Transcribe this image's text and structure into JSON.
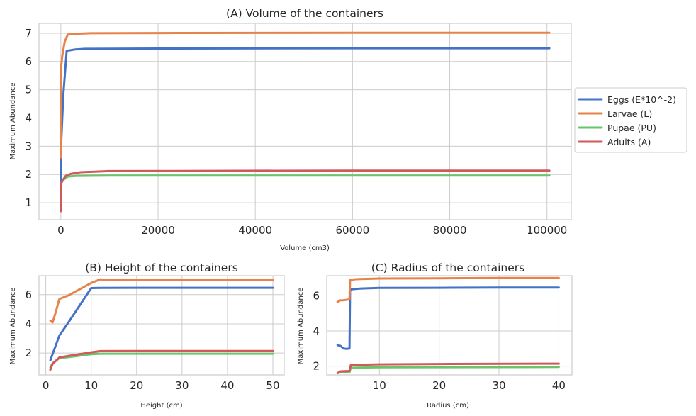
{
  "colors": {
    "eggs": "#4472c4",
    "larvae": "#e6834a",
    "pupae": "#6ac56a",
    "adults": "#d05a5a"
  },
  "legend": {
    "placement": "right",
    "entries": [
      "Eggs (E*10^-2)",
      "Larvae (L)",
      "Pupae (PU)",
      "Adults (A)"
    ]
  },
  "chart_data": [
    {
      "type": "line",
      "title": "(A) Volume of the containers",
      "xlabel": "Volume (cm3)",
      "ylabel": "Maximum Abundance",
      "xlim": [
        -4500,
        105000
      ],
      "ylim": [
        0.4,
        7.35
      ],
      "xticks": [
        0,
        20000,
        40000,
        60000,
        80000,
        100000
      ],
      "yticks": [
        1,
        2,
        3,
        4,
        5,
        6,
        7
      ],
      "grid": true,
      "series": [
        {
          "name": "Eggs (E*10^-2)",
          "color_key": "eggs",
          "x": [
            0,
            10,
            100,
            500,
            1200,
            2000,
            3000,
            5000,
            20000,
            60000,
            100500
          ],
          "y": [
            1.6,
            2.5,
            3.2,
            4.8,
            6.38,
            6.4,
            6.43,
            6.45,
            6.46,
            6.47,
            6.47
          ]
        },
        {
          "name": "Larvae (L)",
          "color_key": "larvae",
          "x": [
            0,
            5,
            50,
            300,
            800,
            1400,
            3000,
            6000,
            20000,
            61000,
            100500
          ],
          "y": [
            2.6,
            5.7,
            5.8,
            6.2,
            6.7,
            6.95,
            6.98,
            7.0,
            7.01,
            7.02,
            7.02
          ]
        },
        {
          "name": "Pupae (PU)",
          "color_key": "pupae",
          "x": [
            0,
            200,
            800,
            1500,
            3000,
            10000,
            100500
          ],
          "y": [
            1.65,
            1.75,
            1.85,
            1.93,
            1.95,
            1.96,
            1.96
          ]
        },
        {
          "name": "Adults (A)",
          "color_key": "adults",
          "x": [
            0,
            20,
            100,
            400,
            1000,
            2000,
            4000,
            10000,
            60000,
            100500
          ],
          "y": [
            0.7,
            1.6,
            1.7,
            1.8,
            1.95,
            2.02,
            2.08,
            2.12,
            2.14,
            2.14
          ]
        }
      ]
    },
    {
      "type": "line",
      "title": "(B) Height of the containers",
      "xlabel": "Height (cm)",
      "ylabel": "Maximum Abundance",
      "xlim": [
        -1.5,
        52.5
      ],
      "ylim": [
        0.5,
        7.3
      ],
      "xticks": [
        0,
        10,
        20,
        30,
        40,
        50
      ],
      "yticks": [
        2,
        4,
        6
      ],
      "grid": true,
      "series": [
        {
          "name": "Eggs (E*10^-2)",
          "color_key": "eggs",
          "x": [
            1,
            3,
            5,
            10,
            12,
            20,
            30,
            40,
            50
          ],
          "y": [
            1.5,
            3.2,
            4.1,
            6.45,
            6.46,
            6.47,
            6.47,
            6.47,
            6.47
          ]
        },
        {
          "name": "Larvae (L)",
          "color_key": "larvae",
          "x": [
            1,
            1.5,
            2,
            3,
            5,
            10,
            12,
            13,
            20,
            30,
            40,
            50
          ],
          "y": [
            4.2,
            4.1,
            4.6,
            5.7,
            5.95,
            6.8,
            7.05,
            7.0,
            7.0,
            7.0,
            6.99,
            6.99
          ]
        },
        {
          "name": "Pupae (PU)",
          "color_key": "pupae",
          "x": [
            1,
            1.5,
            3,
            5,
            10,
            12,
            20,
            30,
            40,
            50
          ],
          "y": [
            1.0,
            1.3,
            1.65,
            1.72,
            1.92,
            1.95,
            1.95,
            1.95,
            1.95,
            1.95
          ]
        },
        {
          "name": "Adults (A)",
          "color_key": "adults",
          "x": [
            1,
            1.5,
            3,
            5,
            10,
            12,
            20,
            30,
            40,
            50
          ],
          "y": [
            0.85,
            1.25,
            1.7,
            1.8,
            2.05,
            2.13,
            2.14,
            2.14,
            2.14,
            2.14
          ]
        }
      ]
    },
    {
      "type": "line",
      "title": "(C) Radius  of the containers",
      "xlabel": "Radius (cm)",
      "ylabel": "Maximum Abundance",
      "xlim": [
        1.2,
        42.2
      ],
      "ylim": [
        1.5,
        7.15
      ],
      "xticks": [
        10,
        20,
        30,
        40
      ],
      "yticks": [
        2,
        4,
        6
      ],
      "grid": true,
      "series": [
        {
          "name": "Eggs (E*10^-2)",
          "color_key": "eggs",
          "x": [
            3,
            3.5,
            4,
            4.5,
            5,
            5.1,
            5.5,
            7,
            10,
            20,
            30,
            40
          ],
          "y": [
            3.2,
            3.15,
            3.0,
            2.98,
            3.0,
            6.35,
            6.38,
            6.42,
            6.45,
            6.46,
            6.47,
            6.47
          ]
        },
        {
          "name": "Larvae (L)",
          "color_key": "larvae",
          "x": [
            3,
            3.5,
            4,
            5,
            5.1,
            6,
            8,
            10,
            20,
            30,
            40
          ],
          "y": [
            5.65,
            5.75,
            5.75,
            5.8,
            6.9,
            6.95,
            6.97,
            6.99,
            7.0,
            7.02,
            7.02
          ]
        },
        {
          "name": "Pupae (PU)",
          "color_key": "pupae",
          "x": [
            3,
            3.5,
            5,
            5.2,
            7,
            10,
            20,
            40
          ],
          "y": [
            1.6,
            1.65,
            1.65,
            1.9,
            1.92,
            1.93,
            1.94,
            1.95
          ]
        },
        {
          "name": "Adults (A)",
          "color_key": "adults",
          "x": [
            3,
            3.5,
            5,
            5.2,
            7,
            10,
            20,
            40
          ],
          "y": [
            1.6,
            1.7,
            1.72,
            2.05,
            2.08,
            2.1,
            2.12,
            2.14
          ]
        }
      ]
    }
  ]
}
